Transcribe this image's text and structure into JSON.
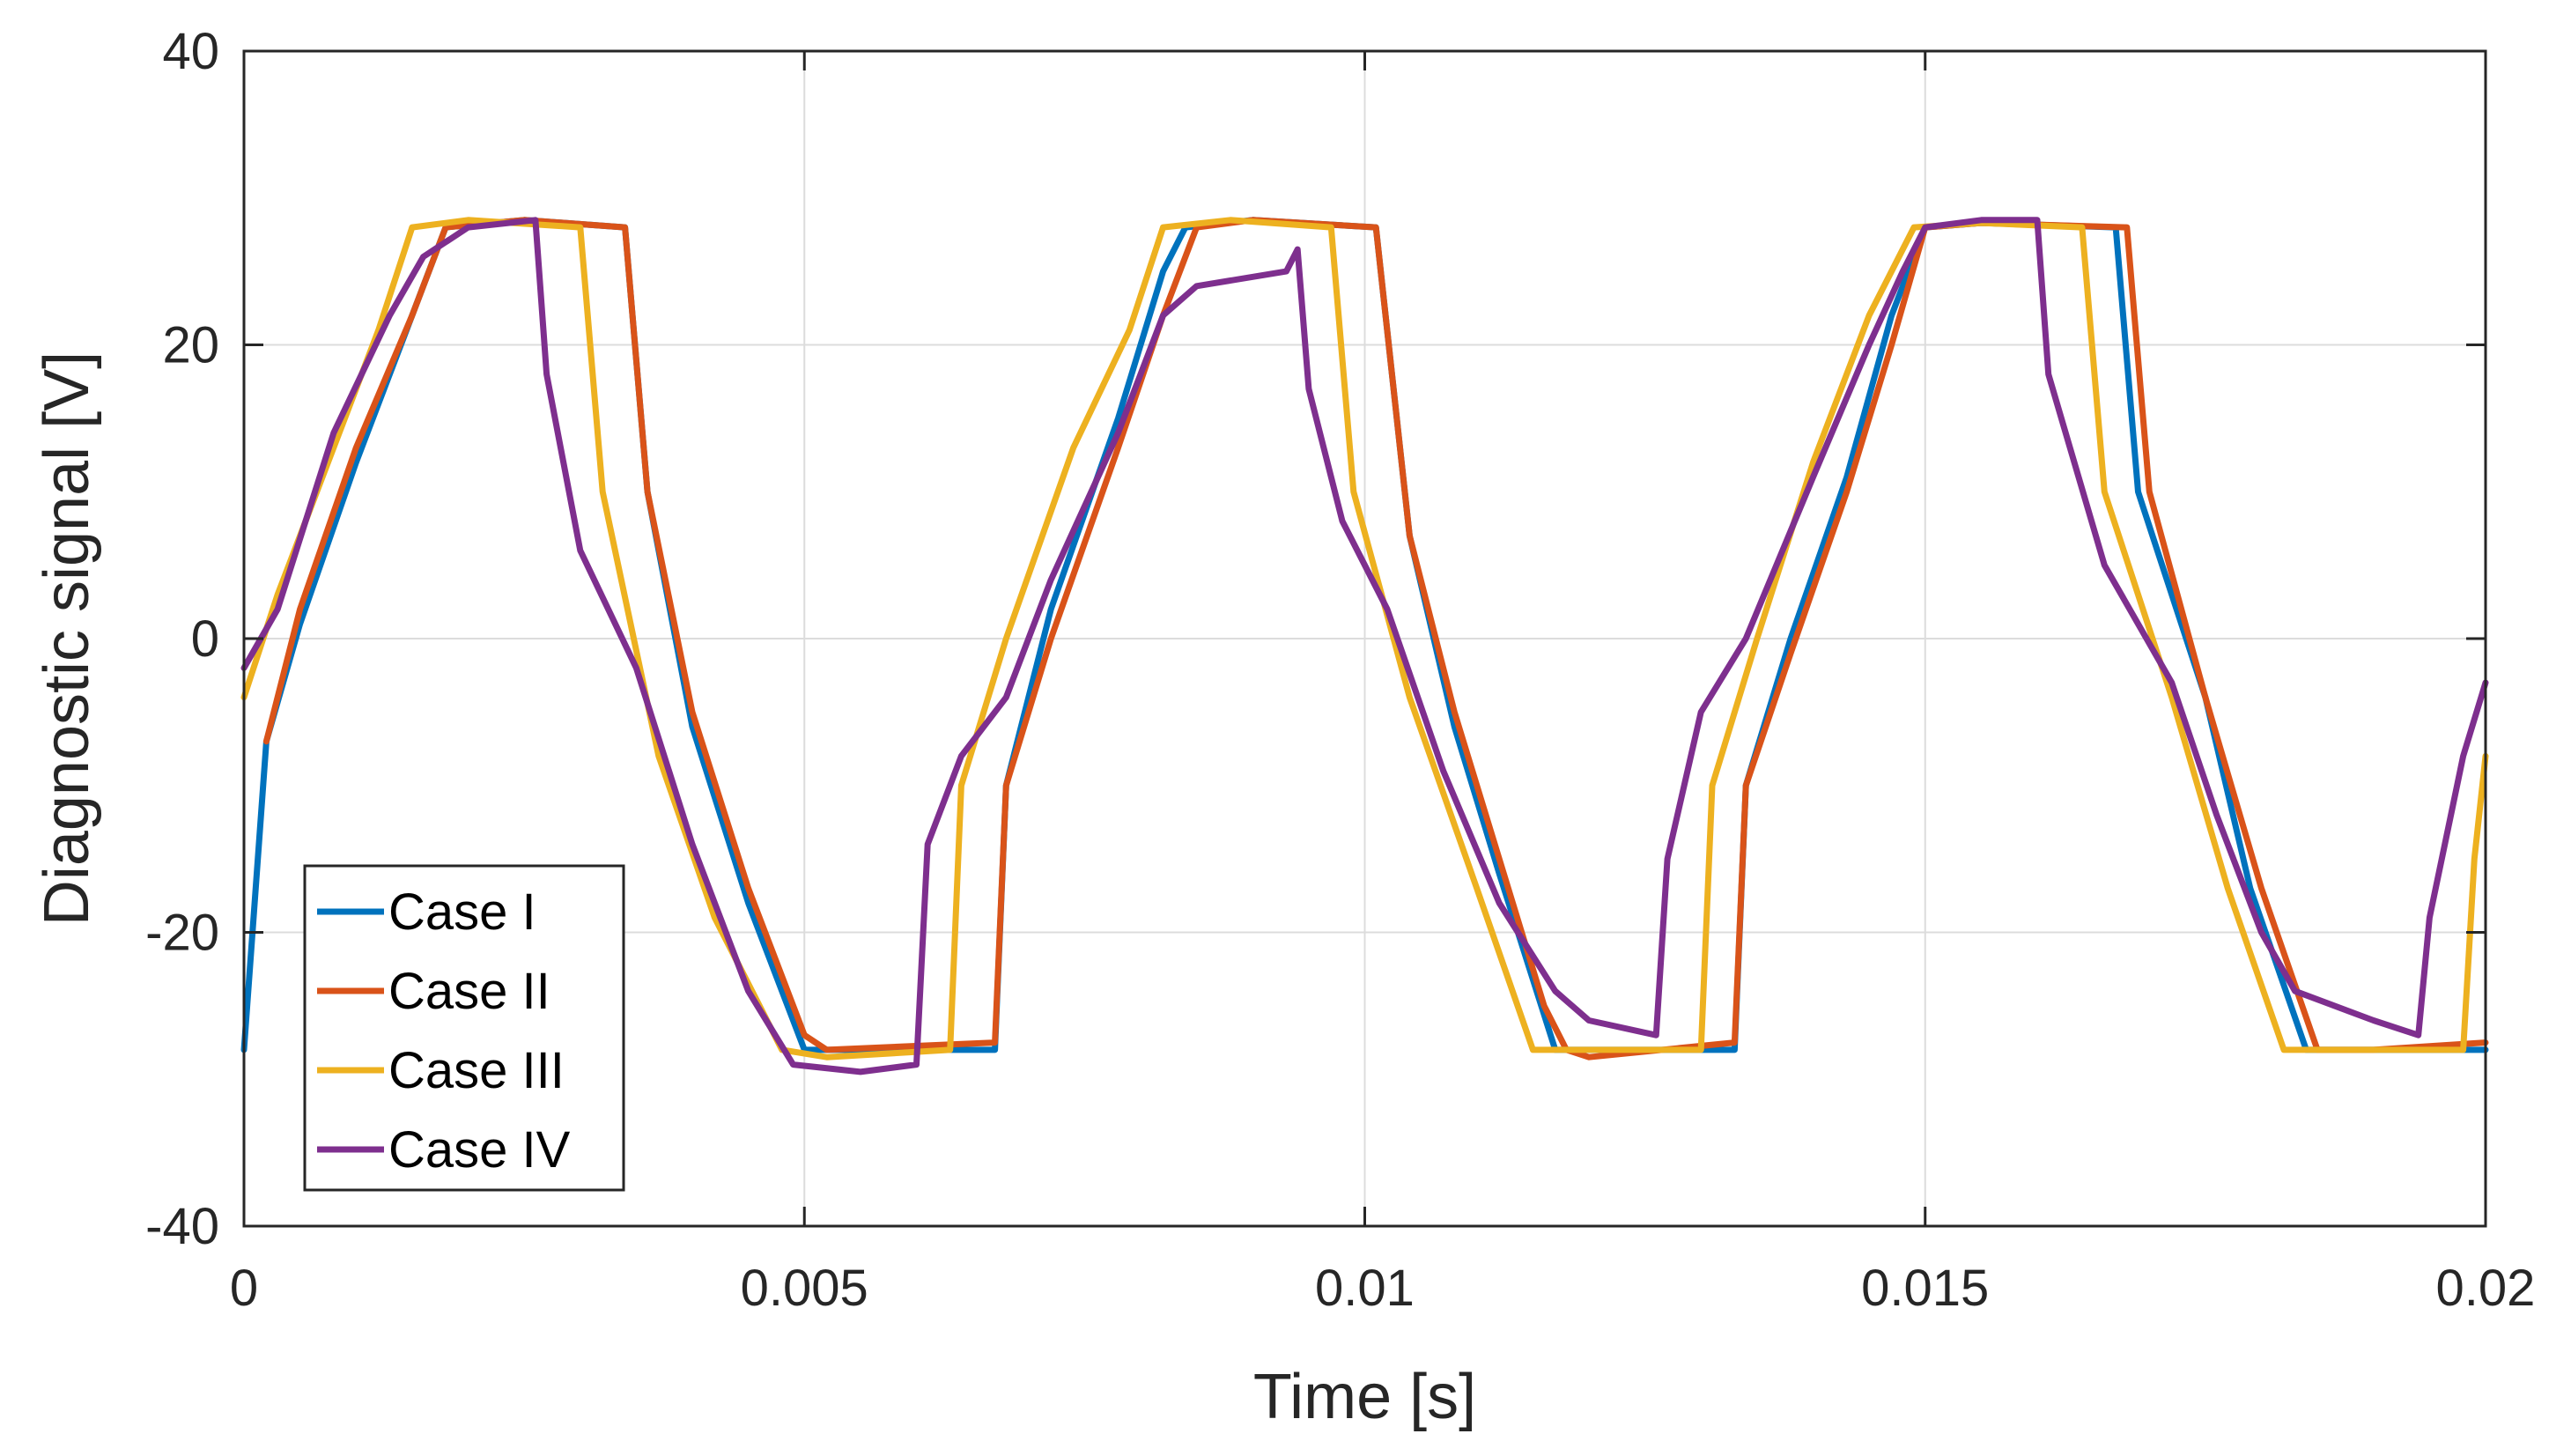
{
  "chart_data": {
    "type": "line",
    "title": "",
    "xlabel": "Time  [s]",
    "ylabel": "Diagnostic signal [V]",
    "xlim": [
      0,
      0.02
    ],
    "ylim": [
      -40,
      40
    ],
    "xticks": [
      0,
      0.005,
      0.01,
      0.015,
      0.02
    ],
    "xtick_labels": [
      "0",
      "0.005",
      "0.01",
      "0.015",
      "0.02"
    ],
    "yticks": [
      -40,
      -20,
      0,
      20,
      40
    ],
    "ytick_labels": [
      "-40",
      "-20",
      "0",
      "20",
      "40"
    ],
    "grid": true,
    "legend_position": "bottom-left",
    "series": [
      {
        "name": "Case I",
        "color": "#0072BD",
        "points": [
          [
            0,
            -28
          ],
          [
            0.0002,
            -7
          ],
          [
            0.0005,
            1
          ],
          [
            0.001,
            12
          ],
          [
            0.0015,
            22
          ],
          [
            0.0018,
            28
          ],
          [
            0.0025,
            28.5
          ],
          [
            0.0034,
            28
          ],
          [
            0.0036,
            10
          ],
          [
            0.004,
            -6
          ],
          [
            0.0045,
            -18
          ],
          [
            0.005,
            -28
          ],
          [
            0.0055,
            -28
          ],
          [
            0.0067,
            -28
          ],
          [
            0.0068,
            -10
          ],
          [
            0.0072,
            2
          ],
          [
            0.0078,
            15
          ],
          [
            0.0082,
            25
          ],
          [
            0.0084,
            28
          ],
          [
            0.009,
            28.5
          ],
          [
            0.0101,
            28
          ],
          [
            0.0104,
            7
          ],
          [
            0.0108,
            -6
          ],
          [
            0.0112,
            -16
          ],
          [
            0.0117,
            -28
          ],
          [
            0.012,
            -28
          ],
          [
            0.0133,
            -28
          ],
          [
            0.0134,
            -10
          ],
          [
            0.0138,
            0
          ],
          [
            0.0143,
            11
          ],
          [
            0.0147,
            22
          ],
          [
            0.015,
            28
          ],
          [
            0.0155,
            28.3
          ],
          [
            0.0167,
            28
          ],
          [
            0.0169,
            10
          ],
          [
            0.0175,
            -4
          ],
          [
            0.0179,
            -17
          ],
          [
            0.0184,
            -28
          ],
          [
            0.019,
            -28
          ],
          [
            0.02,
            -28
          ]
        ]
      },
      {
        "name": "Case II",
        "color": "#D95319",
        "points": [
          [
            0.0002,
            -7
          ],
          [
            0.0005,
            2
          ],
          [
            0.001,
            13
          ],
          [
            0.0015,
            22
          ],
          [
            0.0018,
            28
          ],
          [
            0.0025,
            28.5
          ],
          [
            0.0034,
            28
          ],
          [
            0.0036,
            10
          ],
          [
            0.004,
            -5
          ],
          [
            0.0045,
            -17
          ],
          [
            0.005,
            -27
          ],
          [
            0.0052,
            -28
          ],
          [
            0.0067,
            -27.5
          ],
          [
            0.0068,
            -10
          ],
          [
            0.0072,
            0
          ],
          [
            0.0078,
            13
          ],
          [
            0.0082,
            22
          ],
          [
            0.0085,
            28
          ],
          [
            0.009,
            28.5
          ],
          [
            0.0101,
            28
          ],
          [
            0.0104,
            7
          ],
          [
            0.0108,
            -5
          ],
          [
            0.0112,
            -15
          ],
          [
            0.0116,
            -25
          ],
          [
            0.0118,
            -28
          ],
          [
            0.012,
            -28.5
          ],
          [
            0.0133,
            -27.5
          ],
          [
            0.0134,
            -10
          ],
          [
            0.0138,
            -1
          ],
          [
            0.0143,
            10
          ],
          [
            0.0147,
            20
          ],
          [
            0.015,
            28
          ],
          [
            0.0155,
            28.3
          ],
          [
            0.0168,
            28
          ],
          [
            0.017,
            10
          ],
          [
            0.0175,
            -4
          ],
          [
            0.018,
            -17
          ],
          [
            0.0185,
            -28
          ],
          [
            0.019,
            -28
          ],
          [
            0.02,
            -27.5
          ]
        ]
      },
      {
        "name": "Case III",
        "color": "#EDB120",
        "points": [
          [
            0,
            -4
          ],
          [
            0.0003,
            3
          ],
          [
            0.0008,
            13
          ],
          [
            0.0012,
            21
          ],
          [
            0.0015,
            28
          ],
          [
            0.002,
            28.5
          ],
          [
            0.003,
            28
          ],
          [
            0.0032,
            10
          ],
          [
            0.0037,
            -8
          ],
          [
            0.0042,
            -19
          ],
          [
            0.0048,
            -28
          ],
          [
            0.0052,
            -28.5
          ],
          [
            0.0063,
            -28
          ],
          [
            0.0064,
            -10
          ],
          [
            0.0068,
            0
          ],
          [
            0.0074,
            13
          ],
          [
            0.0079,
            21
          ],
          [
            0.0082,
            28
          ],
          [
            0.0088,
            28.5
          ],
          [
            0.0097,
            28
          ],
          [
            0.0099,
            10
          ],
          [
            0.0104,
            -4
          ],
          [
            0.011,
            -17
          ],
          [
            0.0115,
            -28
          ],
          [
            0.012,
            -28
          ],
          [
            0.013,
            -28
          ],
          [
            0.0131,
            -10
          ],
          [
            0.0135,
            0
          ],
          [
            0.014,
            12
          ],
          [
            0.0145,
            22
          ],
          [
            0.0149,
            28
          ],
          [
            0.0155,
            28.3
          ],
          [
            0.0164,
            28
          ],
          [
            0.0166,
            10
          ],
          [
            0.0172,
            -4
          ],
          [
            0.0177,
            -17
          ],
          [
            0.0182,
            -28
          ],
          [
            0.019,
            -28
          ],
          [
            0.0198,
            -28
          ],
          [
            0.0199,
            -15
          ],
          [
            0.02,
            -8
          ]
        ]
      },
      {
        "name": "Case IV",
        "color": "#7E2F8E",
        "points": [
          [
            0,
            -2
          ],
          [
            0.0003,
            2
          ],
          [
            0.0008,
            14
          ],
          [
            0.0013,
            22
          ],
          [
            0.0016,
            26
          ],
          [
            0.002,
            28
          ],
          [
            0.0026,
            28.5
          ],
          [
            0.0027,
            18
          ],
          [
            0.003,
            6
          ],
          [
            0.0035,
            -2
          ],
          [
            0.004,
            -14
          ],
          [
            0.0045,
            -24
          ],
          [
            0.0049,
            -29
          ],
          [
            0.0055,
            -29.5
          ],
          [
            0.006,
            -29
          ],
          [
            0.0061,
            -14
          ],
          [
            0.0064,
            -8
          ],
          [
            0.0068,
            -4
          ],
          [
            0.0072,
            4
          ],
          [
            0.0078,
            14
          ],
          [
            0.0082,
            22
          ],
          [
            0.0085,
            24
          ],
          [
            0.0093,
            25
          ],
          [
            0.0094,
            26.5
          ],
          [
            0.0095,
            17
          ],
          [
            0.0098,
            8
          ],
          [
            0.0102,
            2
          ],
          [
            0.0107,
            -9
          ],
          [
            0.0112,
            -18
          ],
          [
            0.0117,
            -24
          ],
          [
            0.012,
            -26
          ],
          [
            0.0126,
            -27
          ],
          [
            0.0127,
            -15
          ],
          [
            0.013,
            -5
          ],
          [
            0.0134,
            0
          ],
          [
            0.014,
            11
          ],
          [
            0.0145,
            20
          ],
          [
            0.0148,
            25
          ],
          [
            0.015,
            28
          ],
          [
            0.0155,
            28.5
          ],
          [
            0.016,
            28.5
          ],
          [
            0.0161,
            18
          ],
          [
            0.0166,
            5
          ],
          [
            0.0172,
            -3
          ],
          [
            0.0176,
            -12
          ],
          [
            0.018,
            -20
          ],
          [
            0.0183,
            -24
          ],
          [
            0.019,
            -26
          ],
          [
            0.0194,
            -27
          ],
          [
            0.0195,
            -19
          ],
          [
            0.0198,
            -8
          ],
          [
            0.02,
            -3
          ]
        ]
      }
    ]
  }
}
